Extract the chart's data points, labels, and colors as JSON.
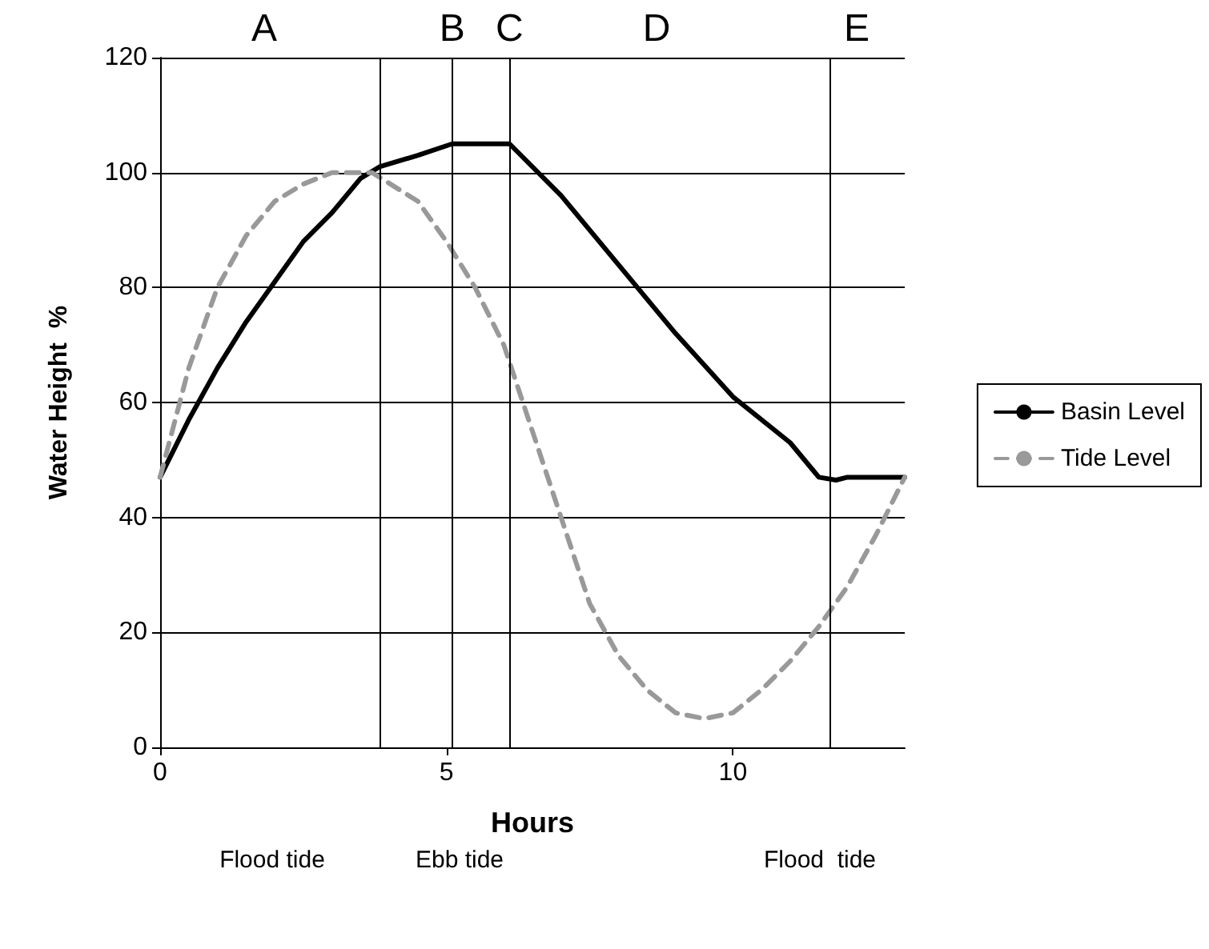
{
  "chart_data": {
    "type": "line",
    "xlabel": "Hours",
    "ylabel": "Water Height  %",
    "xlim": [
      0,
      13
    ],
    "xticks": [
      0,
      5,
      10
    ],
    "ylim": [
      0,
      120
    ],
    "yticks": [
      0,
      20,
      40,
      60,
      80,
      100,
      120
    ],
    "grid": "y",
    "legend": "right",
    "marker": "none",
    "series": [
      {
        "name": "Basin Level",
        "color": "#000000",
        "line_style": "solid",
        "x": [
          0,
          0.5,
          1,
          1.5,
          2,
          2.5,
          3,
          3.5,
          3.83,
          4.5,
          5.1,
          6.1,
          7,
          8,
          9,
          10,
          11,
          11.5,
          11.8,
          12,
          13
        ],
        "values": [
          47,
          57,
          66,
          74,
          81,
          88,
          93,
          99,
          101,
          103,
          105,
          105,
          96,
          84,
          72,
          61,
          53,
          47,
          46.5,
          47,
          47
        ]
      },
      {
        "name": "Tide Level",
        "color": "#999999",
        "line_style": "dashed",
        "x": [
          0,
          0.5,
          1,
          1.5,
          2,
          2.5,
          3,
          3.7,
          4.5,
          5,
          5.5,
          6,
          6.5,
          7,
          7.5,
          8,
          8.5,
          9,
          9.5,
          10,
          10.5,
          11,
          11.5,
          12,
          12.5,
          13
        ],
        "values": [
          47,
          66,
          80,
          89,
          95,
          98,
          100,
          100,
          95,
          88,
          80,
          70,
          55,
          40,
          25,
          16,
          10,
          6,
          5,
          6,
          10,
          15,
          21,
          28,
          37,
          47
        ]
      }
    ],
    "ref_lines": [
      {
        "axis": "x",
        "value": 3.83,
        "color": "#000000"
      },
      {
        "axis": "x",
        "value": 5.1,
        "color": "#000000"
      },
      {
        "axis": "x",
        "value": 6.1,
        "color": "#000000"
      },
      {
        "axis": "x",
        "value": 11.7,
        "color": "#000000"
      }
    ],
    "annotations": [
      "A",
      {
        "text": "B",
        "x": 5.1,
        "y": 120
      },
      {
        "text": "C",
        "x": 6.1,
        "y": 120
      },
      "D",
      "E",
      "Flood tide",
      "Ebb tide",
      "Flood  tide"
    ]
  }
}
